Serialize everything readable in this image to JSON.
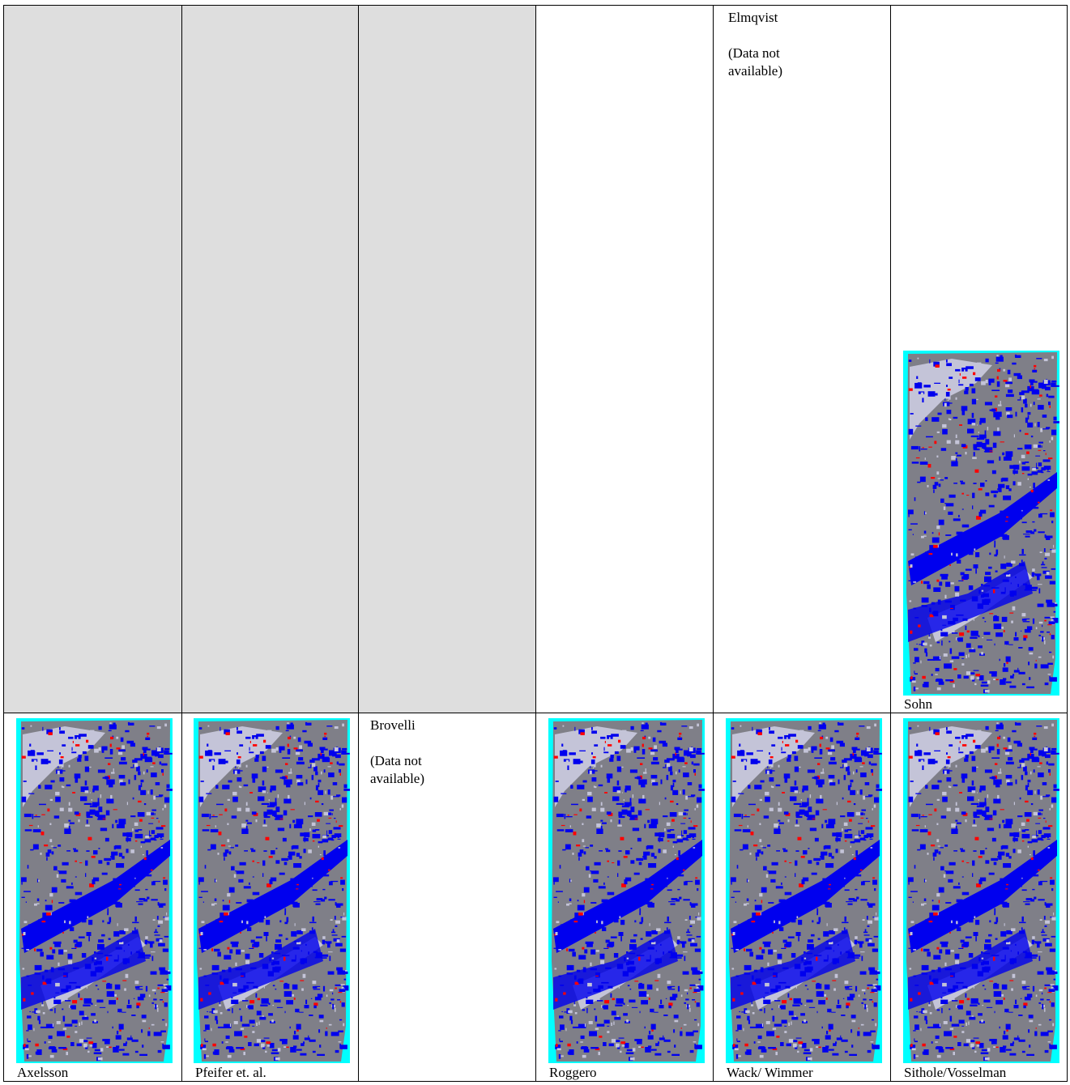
{
  "cells": [
    {
      "label": "Elmqvist",
      "note": "(Data not\navailable)"
    },
    {
      "caption": "Sohn"
    },
    {
      "caption": "Axelsson"
    },
    {
      "caption": "Pfeifer et. al."
    },
    {
      "label": "Brovelli",
      "note": "(Data not\navailable)"
    },
    {
      "caption": "Roggero"
    },
    {
      "caption": "Wack/ Wimmer"
    },
    {
      "caption": "Sithole/Vosselman"
    }
  ]
}
